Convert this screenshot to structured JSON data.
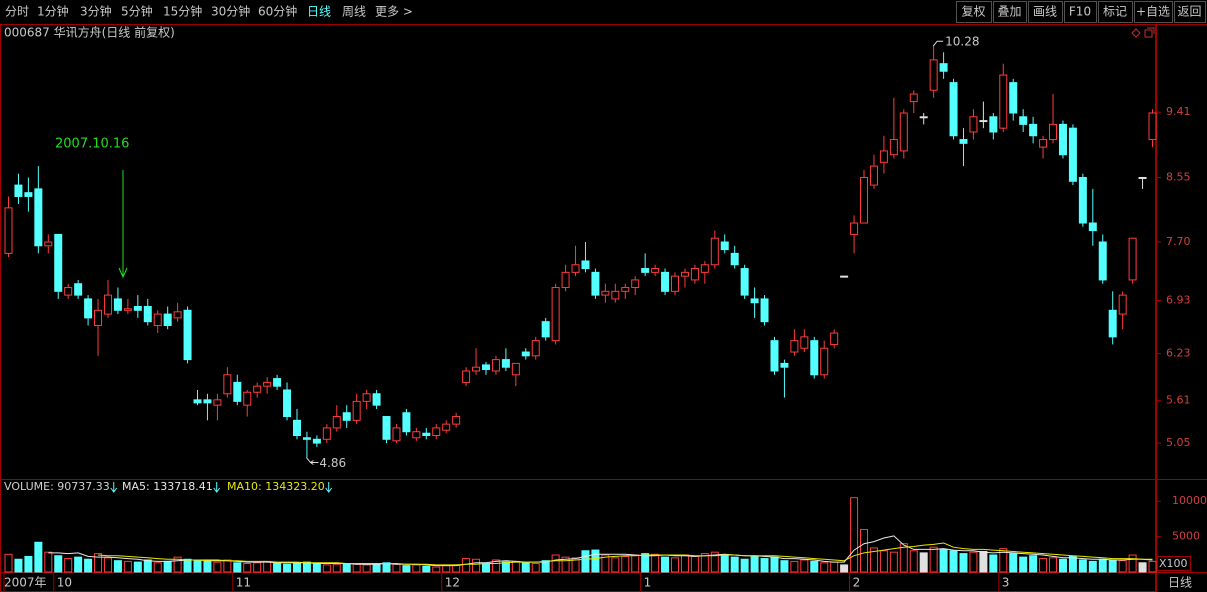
{
  "toolbar": {
    "periods": [
      "分时",
      "1分钟",
      "3分钟",
      "5分钟",
      "15分钟",
      "30分钟",
      "60分钟",
      "日线",
      "周线",
      "更多 >"
    ],
    "buttons": [
      "复权",
      "叠加",
      "画线",
      "F10",
      "标记",
      "+自选",
      "返回"
    ]
  },
  "header": "000687 华讯方舟(日线 前复权)",
  "annotation": "2007.10.16",
  "footer_label": "日线",
  "chart_data": [
    {
      "type": "candlestick",
      "up_color": "#ff3c3c",
      "down_color": "#54ffff",
      "ylim": [
        4.59,
        10.52
      ],
      "yticks": [
        5.05,
        5.61,
        6.23,
        6.93,
        {
          "value": 7.7,
          "label": "7.70"
        },
        8.55,
        9.41
      ],
      "high_label": 10.28,
      "low_label": 4.86,
      "categories": [
        "2007年",
        null,
        null,
        null,
        null,
        "10",
        null,
        null,
        null,
        null,
        null,
        null,
        null,
        null,
        null,
        null,
        null,
        null,
        null,
        null,
        null,
        null,
        null,
        "11",
        null,
        null,
        null,
        null,
        null,
        null,
        null,
        null,
        null,
        null,
        null,
        null,
        null,
        null,
        null,
        null,
        null,
        null,
        null,
        null,
        "12",
        null,
        null,
        null,
        null,
        null,
        null,
        null,
        null,
        null,
        null,
        null,
        null,
        null,
        null,
        null,
        null,
        null,
        null,
        null,
        "1",
        null,
        null,
        null,
        null,
        null,
        null,
        null,
        null,
        null,
        null,
        null,
        null,
        null,
        null,
        null,
        null,
        null,
        null,
        null,
        null,
        "2",
        null,
        null,
        null,
        null,
        null,
        null,
        null,
        null,
        null,
        null,
        null,
        null,
        null,
        null,
        "3",
        null,
        null,
        null,
        null,
        null,
        null,
        null,
        null,
        null,
        null,
        null,
        null,
        null,
        null,
        null
      ],
      "ohlc": [
        [
          7.55,
          8.3,
          7.5,
          8.15
        ],
        [
          8.45,
          8.6,
          8.2,
          8.3
        ],
        [
          8.35,
          8.55,
          8.1,
          8.3
        ],
        [
          8.4,
          8.7,
          7.55,
          7.65
        ],
        [
          7.65,
          7.8,
          7.55,
          7.7
        ],
        [
          7.8,
          7.8,
          6.95,
          7.05
        ],
        [
          7.0,
          7.15,
          6.95,
          7.1
        ],
        [
          7.15,
          7.2,
          6.95,
          7.0
        ],
        [
          6.95,
          7.0,
          6.6,
          6.7
        ],
        [
          6.6,
          6.95,
          6.2,
          6.8
        ],
        [
          6.75,
          7.2,
          6.7,
          7.0
        ],
        [
          6.95,
          7.1,
          6.75,
          6.8
        ],
        [
          6.8,
          6.95,
          6.75,
          6.82
        ],
        [
          6.85,
          7.0,
          6.7,
          6.8
        ],
        [
          6.85,
          6.95,
          6.6,
          6.65
        ],
        [
          6.6,
          6.8,
          6.5,
          6.75
        ],
        [
          6.75,
          6.85,
          6.55,
          6.6
        ],
        [
          6.7,
          6.9,
          6.65,
          6.78
        ],
        [
          6.8,
          6.85,
          6.1,
          6.15
        ],
        [
          5.62,
          5.75,
          5.55,
          5.58
        ],
        [
          5.62,
          5.7,
          5.35,
          5.58
        ],
        [
          5.55,
          5.7,
          5.35,
          5.62
        ],
        [
          5.7,
          6.05,
          5.65,
          5.95
        ],
        [
          5.85,
          5.95,
          5.55,
          5.6
        ],
        [
          5.55,
          5.75,
          5.4,
          5.72
        ],
        [
          5.72,
          5.85,
          5.65,
          5.8
        ],
        [
          5.8,
          5.92,
          5.7,
          5.85
        ],
        [
          5.9,
          5.95,
          5.75,
          5.8
        ],
        [
          5.75,
          5.85,
          5.35,
          5.4
        ],
        [
          5.35,
          5.5,
          5.1,
          5.15
        ],
        [
          5.12,
          5.2,
          4.86,
          5.1
        ],
        [
          5.1,
          5.15,
          5.0,
          5.05
        ],
        [
          5.1,
          5.3,
          5.05,
          5.25
        ],
        [
          5.25,
          5.55,
          5.2,
          5.4
        ],
        [
          5.45,
          5.55,
          5.25,
          5.35
        ],
        [
          5.35,
          5.7,
          5.3,
          5.6
        ],
        [
          5.6,
          5.75,
          5.5,
          5.7
        ],
        [
          5.7,
          5.75,
          5.5,
          5.55
        ],
        [
          5.4,
          5.4,
          5.05,
          5.1
        ],
        [
          5.08,
          5.3,
          5.05,
          5.25
        ],
        [
          5.45,
          5.5,
          5.15,
          5.2
        ],
        [
          5.12,
          5.25,
          5.08,
          5.2
        ],
        [
          5.18,
          5.25,
          5.1,
          5.15
        ],
        [
          5.15,
          5.3,
          5.1,
          5.25
        ],
        [
          5.22,
          5.35,
          5.18,
          5.3
        ],
        [
          5.3,
          5.45,
          5.25,
          5.4
        ],
        [
          5.85,
          6.05,
          5.8,
          6.0
        ],
        [
          6.0,
          6.3,
          5.95,
          6.05
        ],
        [
          6.08,
          6.12,
          5.95,
          6.02
        ],
        [
          6.0,
          6.2,
          5.95,
          6.15
        ],
        [
          6.15,
          6.3,
          6.0,
          6.05
        ],
        [
          5.95,
          6.1,
          5.8,
          6.1
        ],
        [
          6.25,
          6.3,
          6.15,
          6.2
        ],
        [
          6.2,
          6.45,
          6.15,
          6.4
        ],
        [
          6.65,
          6.7,
          6.4,
          6.45
        ],
        [
          6.4,
          7.15,
          6.35,
          7.1
        ],
        [
          7.1,
          7.4,
          7.05,
          7.3
        ],
        [
          7.3,
          7.65,
          7.25,
          7.4
        ],
        [
          7.45,
          7.7,
          7.3,
          7.35
        ],
        [
          7.3,
          7.35,
          6.95,
          7.0
        ],
        [
          7.0,
          7.15,
          6.9,
          7.05
        ],
        [
          6.95,
          7.15,
          6.9,
          7.05
        ],
        [
          7.05,
          7.15,
          6.95,
          7.1
        ],
        [
          7.1,
          7.25,
          7.0,
          7.2
        ],
        [
          7.35,
          7.55,
          7.25,
          7.3
        ],
        [
          7.3,
          7.4,
          7.25,
          7.35
        ],
        [
          7.3,
          7.35,
          7.0,
          7.05
        ],
        [
          7.05,
          7.3,
          7.0,
          7.25
        ],
        [
          7.25,
          7.35,
          7.1,
          7.3
        ],
        [
          7.2,
          7.4,
          7.15,
          7.35
        ],
        [
          7.3,
          7.45,
          7.15,
          7.4
        ],
        [
          7.4,
          7.85,
          7.35,
          7.75
        ],
        [
          7.7,
          7.8,
          7.55,
          7.6
        ],
        [
          7.55,
          7.65,
          7.35,
          7.4
        ],
        [
          7.35,
          7.4,
          6.95,
          7.0
        ],
        [
          6.95,
          7.1,
          6.7,
          6.9
        ],
        [
          6.95,
          7.0,
          6.6,
          6.65
        ],
        [
          6.4,
          6.45,
          5.95,
          6.0
        ],
        [
          6.1,
          6.15,
          5.65,
          6.05
        ],
        [
          6.25,
          6.55,
          6.2,
          6.4
        ],
        [
          6.3,
          6.55,
          6.25,
          6.45
        ],
        [
          6.4,
          6.45,
          5.9,
          5.95
        ],
        [
          5.95,
          6.4,
          5.9,
          6.3
        ],
        [
          6.35,
          6.55,
          6.3,
          6.5
        ],
        [
          7.25,
          7.25,
          7.25,
          7.25
        ],
        [
          7.8,
          8.05,
          7.55,
          7.95
        ],
        [
          7.95,
          8.65,
          7.95,
          8.55
        ],
        [
          8.45,
          8.85,
          8.4,
          8.7
        ],
        [
          8.75,
          9.1,
          8.6,
          8.9
        ],
        [
          8.85,
          9.6,
          8.8,
          9.05
        ],
        [
          8.9,
          9.45,
          8.8,
          9.4
        ],
        [
          9.55,
          9.7,
          9.4,
          9.65
        ],
        [
          9.35,
          9.4,
          9.25,
          9.35
        ],
        [
          9.7,
          10.28,
          9.6,
          10.1
        ],
        [
          10.05,
          10.2,
          9.85,
          9.95
        ],
        [
          9.8,
          9.85,
          9.05,
          9.1
        ],
        [
          9.05,
          9.2,
          8.7,
          9.0
        ],
        [
          9.15,
          9.45,
          9.05,
          9.35
        ],
        [
          9.3,
          9.55,
          9.2,
          9.3
        ],
        [
          9.35,
          9.4,
          9.05,
          9.15
        ],
        [
          9.2,
          10.05,
          9.15,
          9.9
        ],
        [
          9.8,
          9.85,
          9.3,
          9.4
        ],
        [
          9.35,
          9.45,
          9.15,
          9.25
        ],
        [
          9.25,
          9.35,
          9.0,
          9.1
        ],
        [
          8.95,
          9.1,
          8.8,
          9.05
        ],
        [
          9.05,
          9.65,
          9.0,
          9.25
        ],
        [
          9.25,
          9.3,
          8.8,
          8.85
        ],
        [
          9.2,
          9.25,
          8.45,
          8.5
        ],
        [
          8.55,
          8.6,
          7.9,
          7.95
        ],
        [
          7.95,
          8.4,
          7.65,
          7.85
        ],
        [
          7.7,
          7.8,
          7.15,
          7.2
        ],
        [
          6.8,
          7.05,
          6.35,
          6.45
        ],
        [
          6.75,
          7.05,
          6.55,
          7.0
        ],
        [
          7.2,
          7.75,
          7.15,
          7.75
        ],
        [
          8.55,
          8.55,
          8.4,
          8.55
        ],
        [
          9.05,
          9.45,
          8.95,
          9.4
        ]
      ]
    },
    {
      "type": "volume",
      "headers": [
        "VOLUME: 90737.33",
        "MA5: 133718.41",
        "MA10: 134323.20"
      ],
      "unit_label": "X100",
      "ylim": [
        0,
        13000
      ],
      "yticks": [
        5000,
        10000
      ],
      "values": [
        2500,
        1800,
        2200,
        4200,
        2800,
        2300,
        1900,
        2100,
        1800,
        2600,
        2000,
        1600,
        1500,
        1400,
        1700,
        1300,
        1500,
        2100,
        1800,
        1600,
        1500,
        1400,
        1700,
        1300,
        1200,
        1300,
        1500,
        1200,
        1100,
        1300,
        1400,
        1200,
        1000,
        1100,
        1200,
        1100,
        1000,
        1200,
        1300,
        1100,
        900,
        1000,
        800,
        700,
        900,
        1000,
        1900,
        1800,
        1200,
        1700,
        1400,
        1500,
        1300,
        1200,
        1600,
        2400,
        2100,
        2000,
        3000,
        3100,
        2400,
        2000,
        2200,
        2400,
        2600,
        2500,
        2100,
        2000,
        2400,
        2200,
        2600,
        2800,
        2400,
        2100,
        1800,
        2200,
        1900,
        2100,
        1600,
        1500,
        1700,
        1500,
        1300,
        1400,
        1000,
        10500,
        6000,
        3400,
        3000,
        2800,
        4000,
        3000,
        2700,
        3500,
        3200,
        3000,
        2600,
        2800,
        2900,
        2400,
        3300,
        2600,
        2100,
        2300,
        1900,
        2000,
        1800,
        2200,
        1700,
        1500,
        1800,
        1700,
        1600,
        2400,
        1300,
        1500
      ],
      "series": [
        {
          "name": "MA5",
          "color": "#e8e8e8",
          "values": [
            null,
            null,
            null,
            null,
            2700,
            2700,
            2600,
            2700,
            2200,
            2100,
            2100,
            2000,
            1900,
            1800,
            1600,
            1500,
            1500,
            1600,
            1700,
            1700,
            1700,
            1700,
            1600,
            1500,
            1400,
            1400,
            1400,
            1300,
            1300,
            1300,
            1300,
            1200,
            1200,
            1200,
            1200,
            1100,
            1100,
            1100,
            1200,
            1100,
            1100,
            1100,
            1000,
            900,
            900,
            900,
            1100,
            1300,
            1300,
            1500,
            1600,
            1500,
            1400,
            1400,
            1400,
            1700,
            1800,
            1900,
            2200,
            2500,
            2500,
            2500,
            2500,
            2400,
            2300,
            2300,
            2400,
            2300,
            2300,
            2200,
            2300,
            2400,
            2500,
            2400,
            2300,
            2300,
            2200,
            2100,
            1900,
            1900,
            1800,
            1700,
            1500,
            1400,
            1400,
            3100,
            4000,
            4300,
            4800,
            5100,
            3800,
            3200,
            3200,
            3200,
            3300,
            3100,
            3000,
            3000,
            2800,
            2700,
            2800,
            2700,
            2600,
            2500,
            2400,
            2200,
            2000,
            2000,
            1900,
            1800,
            1800,
            1700,
            1700,
            1800,
            1800,
            1700
          ]
        },
        {
          "name": "MA10",
          "color": "#e8e800",
          "values": [
            null,
            null,
            null,
            null,
            null,
            null,
            null,
            null,
            null,
            2400,
            2300,
            2300,
            2200,
            2100,
            2000,
            1900,
            1800,
            1800,
            1700,
            1700,
            1600,
            1600,
            1600,
            1600,
            1500,
            1500,
            1500,
            1400,
            1400,
            1400,
            1300,
            1300,
            1300,
            1300,
            1200,
            1200,
            1200,
            1200,
            1200,
            1200,
            1100,
            1100,
            1100,
            1000,
            1000,
            1000,
            1100,
            1100,
            1200,
            1200,
            1300,
            1400,
            1400,
            1400,
            1500,
            1600,
            1600,
            1700,
            1800,
            1900,
            2100,
            2200,
            2300,
            2300,
            2400,
            2400,
            2400,
            2400,
            2400,
            2300,
            2300,
            2300,
            2400,
            2400,
            2300,
            2300,
            2300,
            2300,
            2200,
            2100,
            2000,
            1900,
            1800,
            1700,
            1600,
            2300,
            2700,
            2900,
            3100,
            3300,
            3500,
            3600,
            3800,
            3900,
            4100,
            3500,
            3300,
            3200,
            3200,
            3100,
            3000,
            2900,
            2800,
            2700,
            2600,
            2500,
            2400,
            2300,
            2200,
            2100,
            2000,
            1900,
            1900,
            1900,
            1800,
            1800
          ]
        }
      ]
    }
  ]
}
